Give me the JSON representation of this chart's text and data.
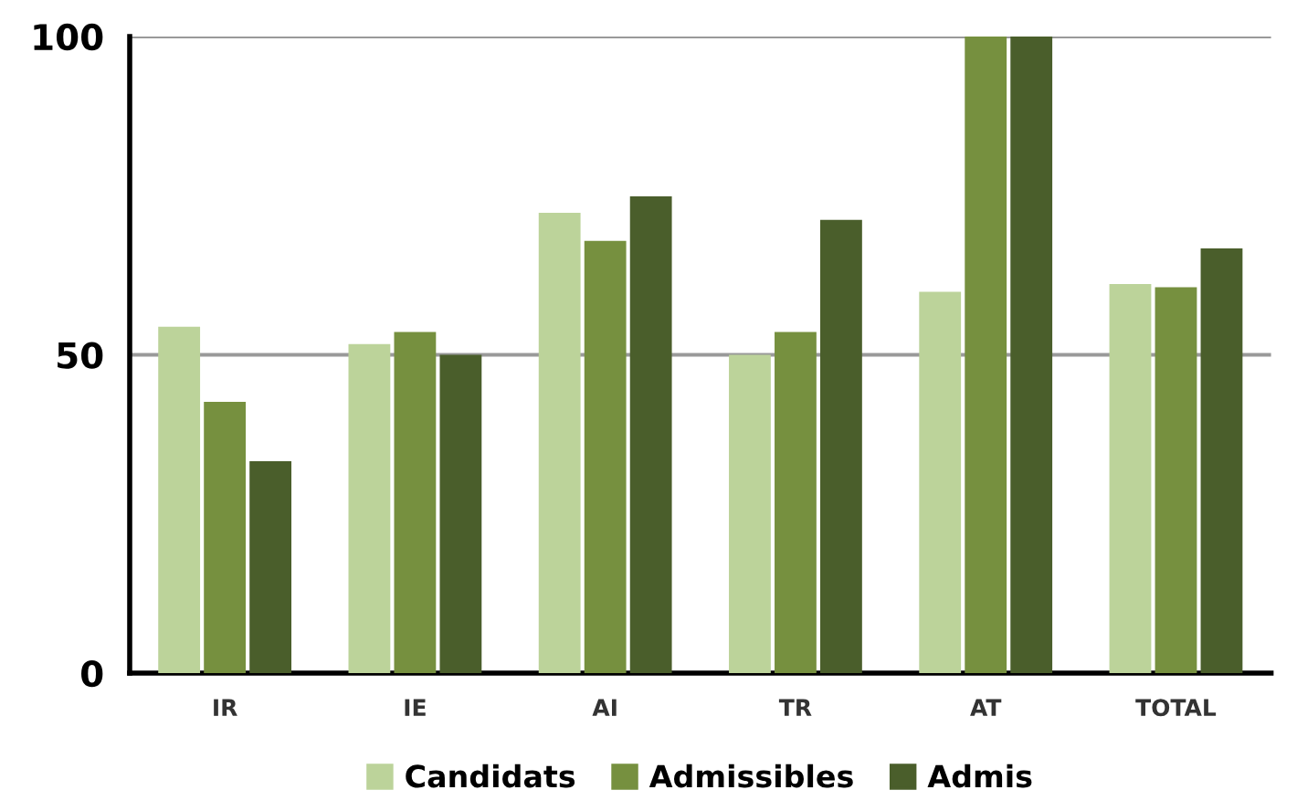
{
  "chart_data": {
    "type": "bar",
    "categories": [
      "IR",
      "IE",
      "AI",
      "TR",
      "AT",
      "TOTAL"
    ],
    "series": [
      {
        "name": "Candidats",
        "color": "#bcd39a",
        "values": [
          54.4,
          51.7,
          72.3,
          50,
          59.9,
          61.1
        ]
      },
      {
        "name": "Admissibles",
        "color": "#76903f",
        "values": [
          42.6,
          53.6,
          67.9,
          53.6,
          100,
          60.6
        ]
      },
      {
        "name": "Admis",
        "color": "#4a5e2b",
        "values": [
          33.3,
          50,
          74.9,
          71.2,
          100,
          66.7
        ]
      }
    ],
    "ylim": [
      0,
      100
    ],
    "yticks": [
      0,
      50,
      100
    ],
    "grid": "y",
    "legend": "bottom"
  }
}
